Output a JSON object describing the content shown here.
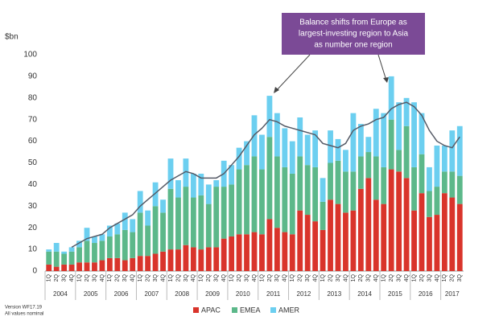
{
  "chart_data": {
    "type": "stacked_bar",
    "y_label": "$bn",
    "annotation": [
      "Balance shifts from Europe as",
      "largest-investing region to Asia",
      "as number one region"
    ],
    "notes": [
      "Version WF17.19",
      "All values nominal"
    ],
    "years": [
      "2004",
      "2005",
      "2006",
      "2007",
      "2008",
      "2009",
      "2010",
      "2011",
      "2012",
      "2013",
      "2014",
      "2015",
      "2016",
      "2017"
    ],
    "categories": [
      "1Q",
      "2Q",
      "3Q",
      "4Q",
      "1Q",
      "2Q",
      "3Q",
      "4Q",
      "1Q",
      "2Q",
      "3Q",
      "4Q",
      "1Q",
      "2Q",
      "3Q",
      "4Q",
      "1Q",
      "2Q",
      "3Q",
      "4Q",
      "1Q",
      "2Q",
      "3Q",
      "4Q",
      "1Q",
      "2Q",
      "3Q",
      "4Q",
      "1Q",
      "2Q",
      "3Q",
      "4Q",
      "1Q",
      "2Q",
      "3Q",
      "4Q",
      "1Q",
      "2Q",
      "3Q",
      "4Q",
      "1Q",
      "2Q",
      "3Q",
      "4Q",
      "1Q",
      "2Q",
      "3Q",
      "4Q",
      "1Q",
      "2Q",
      "3Q",
      "4Q",
      "1Q",
      "2Q",
      "3Q"
    ],
    "series": [
      {
        "name": "APAC",
        "color": "#d9342b",
        "values": [
          3,
          2,
          3,
          3,
          4,
          4,
          4,
          5,
          6,
          6,
          5,
          6,
          7,
          7,
          8,
          9,
          10,
          10,
          12,
          11,
          10,
          11,
          11,
          15,
          16,
          17,
          17,
          18,
          17,
          24,
          20,
          18,
          17,
          28,
          26,
          23,
          19,
          33,
          31,
          27,
          28,
          38,
          43,
          33,
          31,
          47,
          46,
          43,
          28,
          36,
          25,
          26,
          36,
          34,
          31
        ]
      },
      {
        "name": "EMEA",
        "color": "#5cb88a",
        "values": [
          6,
          7,
          5,
          6,
          7,
          10,
          9,
          9,
          10,
          11,
          14,
          12,
          20,
          14,
          22,
          18,
          28,
          24,
          27,
          23,
          25,
          20,
          28,
          24,
          24,
          30,
          32,
          35,
          30,
          38,
          33,
          30,
          28,
          25,
          23,
          25,
          13,
          17,
          20,
          19,
          18,
          15,
          12,
          20,
          17,
          23,
          10,
          24,
          20,
          18,
          12,
          13,
          10,
          12,
          13
        ]
      },
      {
        "name": "AMER",
        "color": "#6ccff0",
        "values": [
          1,
          4,
          1,
          2,
          3,
          6,
          3,
          3,
          5,
          5,
          8,
          6,
          10,
          7,
          11,
          6,
          14,
          8,
          13,
          11,
          10,
          9,
          3,
          12,
          9,
          10,
          11,
          19,
          16,
          19,
          20,
          18,
          15,
          18,
          14,
          17,
          11,
          15,
          10,
          10,
          27,
          15,
          7,
          22,
          25,
          20,
          22,
          13,
          30,
          19,
          11,
          19,
          12,
          19,
          23
        ]
      }
    ],
    "trend": {
      "color": "#555a66",
      "values": [
        null,
        null,
        null,
        11,
        13,
        15,
        16,
        17,
        20,
        22,
        24,
        26,
        30,
        33,
        36,
        39,
        42,
        44,
        46,
        45,
        43,
        43,
        43,
        45,
        49,
        53,
        58,
        63,
        66,
        70,
        69,
        67,
        66,
        65,
        64,
        63,
        59,
        58,
        57,
        59,
        65,
        67,
        68,
        70,
        71,
        75,
        77,
        78,
        76,
        72,
        65,
        60,
        58,
        57,
        62
      ]
    },
    "ylim": [
      0,
      100
    ],
    "yticks": [
      0,
      10,
      20,
      30,
      40,
      50,
      60,
      70,
      80,
      90,
      100
    ],
    "grid": false,
    "legend": "bottom"
  }
}
